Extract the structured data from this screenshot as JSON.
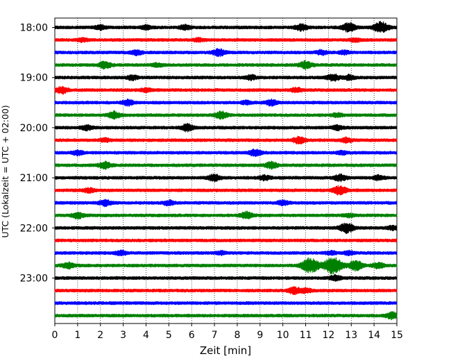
{
  "chart_data": {
    "type": "line",
    "xlabel": "Zeit  [min]",
    "ylabel": "UTC (Lokalzeit = UTC + 02:00)",
    "xlim": [
      0,
      15
    ],
    "x_ticks": [
      "0",
      "1",
      "2",
      "3",
      "4",
      "5",
      "6",
      "7",
      "8",
      "9",
      "10",
      "11",
      "12",
      "13",
      "14",
      "15"
    ],
    "y_tick_labels": [
      "18:00",
      "19:00",
      "20:00",
      "21:00",
      "22:00",
      "23:00"
    ],
    "y_tick_trace_index": [
      0,
      4,
      8,
      12,
      16,
      20
    ],
    "grid": "vertical-dotted",
    "trace_colors": [
      "#000000",
      "#ff0000",
      "#0000ff",
      "#008000"
    ],
    "traces": [
      {
        "start": "18:00",
        "color": "#000000",
        "events": [
          [
            2,
            0.4
          ],
          [
            4,
            0.35
          ],
          [
            5.7,
            0.4
          ],
          [
            10.8,
            0.6
          ],
          [
            12.9,
            0.8
          ],
          [
            14.3,
            1.0
          ]
        ]
      },
      {
        "start": "18:15",
        "color": "#ff0000",
        "events": [
          [
            1.2,
            0.3
          ],
          [
            6.3,
            0.3
          ],
          [
            13.2,
            0.3
          ]
        ]
      },
      {
        "start": "18:30",
        "color": "#0000ff",
        "events": [
          [
            3.6,
            0.4
          ],
          [
            7.2,
            0.6
          ],
          [
            11.7,
            0.4
          ],
          [
            12.7,
            0.3
          ]
        ]
      },
      {
        "start": "18:45",
        "color": "#008000",
        "events": [
          [
            2.2,
            0.6
          ],
          [
            4.5,
            0.3
          ],
          [
            11.0,
            0.7
          ]
        ]
      },
      {
        "start": "19:00",
        "color": "#000000",
        "events": [
          [
            3.4,
            0.4
          ],
          [
            8.6,
            0.4
          ],
          [
            12.2,
            0.6
          ],
          [
            12.9,
            0.4
          ]
        ]
      },
      {
        "start": "19:15",
        "color": "#ff0000",
        "events": [
          [
            0.3,
            0.6
          ],
          [
            4.0,
            0.3
          ],
          [
            10.6,
            0.4
          ]
        ]
      },
      {
        "start": "19:30",
        "color": "#0000ff",
        "events": [
          [
            3.2,
            0.5
          ],
          [
            8.4,
            0.3
          ],
          [
            9.5,
            0.5
          ]
        ]
      },
      {
        "start": "19:45",
        "color": "#008000",
        "events": [
          [
            2.6,
            0.6
          ],
          [
            7.3,
            0.6
          ],
          [
            12.4,
            0.3
          ]
        ]
      },
      {
        "start": "20:00",
        "color": "#000000",
        "events": [
          [
            1.4,
            0.4
          ],
          [
            5.8,
            0.6
          ],
          [
            12.4,
            0.4
          ]
        ]
      },
      {
        "start": "20:15",
        "color": "#ff0000",
        "events": [
          [
            2.2,
            0.3
          ],
          [
            10.7,
            0.6
          ],
          [
            12.8,
            0.4
          ]
        ]
      },
      {
        "start": "20:30",
        "color": "#0000ff",
        "events": [
          [
            1.0,
            0.4
          ],
          [
            8.8,
            0.6
          ],
          [
            12.6,
            0.3
          ]
        ]
      },
      {
        "start": "20:45",
        "color": "#008000",
        "events": [
          [
            2.2,
            0.6
          ],
          [
            9.5,
            0.6
          ]
        ]
      },
      {
        "start": "21:00",
        "color": "#000000",
        "events": [
          [
            7.0,
            0.6
          ],
          [
            9.2,
            0.4
          ],
          [
            12.5,
            0.6
          ],
          [
            14.2,
            0.4
          ]
        ]
      },
      {
        "start": "21:15",
        "color": "#ff0000",
        "events": [
          [
            1.5,
            0.4
          ],
          [
            12.5,
            0.8
          ]
        ]
      },
      {
        "start": "21:30",
        "color": "#0000ff",
        "events": [
          [
            2.2,
            0.5
          ],
          [
            5.0,
            0.4
          ],
          [
            10.0,
            0.4
          ]
        ]
      },
      {
        "start": "21:45",
        "color": "#008000",
        "events": [
          [
            1.0,
            0.5
          ],
          [
            8.4,
            0.6
          ],
          [
            12.9,
            0.3
          ]
        ]
      },
      {
        "start": "22:00",
        "color": "#000000",
        "events": [
          [
            12.8,
            0.9
          ],
          [
            14.8,
            0.3
          ]
        ]
      },
      {
        "start": "22:15",
        "color": "#ff0000",
        "events": []
      },
      {
        "start": "22:30",
        "color": "#0000ff",
        "events": [
          [
            2.9,
            0.4
          ],
          [
            7.3,
            0.3
          ],
          [
            12.1,
            0.3
          ],
          [
            12.9,
            0.3
          ]
        ]
      },
      {
        "start": "22:45",
        "color": "#008000",
        "events": [
          [
            0.6,
            0.5
          ],
          [
            11.2,
            1.4
          ],
          [
            12.2,
            1.6
          ],
          [
            13.2,
            0.9
          ],
          [
            14.2,
            0.5
          ]
        ]
      },
      {
        "start": "23:00",
        "color": "#000000",
        "events": [
          [
            12.3,
            0.5
          ]
        ]
      },
      {
        "start": "23:15",
        "color": "#ff0000",
        "events": [
          [
            10.5,
            0.6
          ],
          [
            11.0,
            0.4
          ]
        ]
      },
      {
        "start": "23:30",
        "color": "#0000ff",
        "events": []
      },
      {
        "start": "23:45",
        "color": "#008000",
        "events": [
          [
            14.8,
            0.6
          ]
        ]
      }
    ]
  }
}
